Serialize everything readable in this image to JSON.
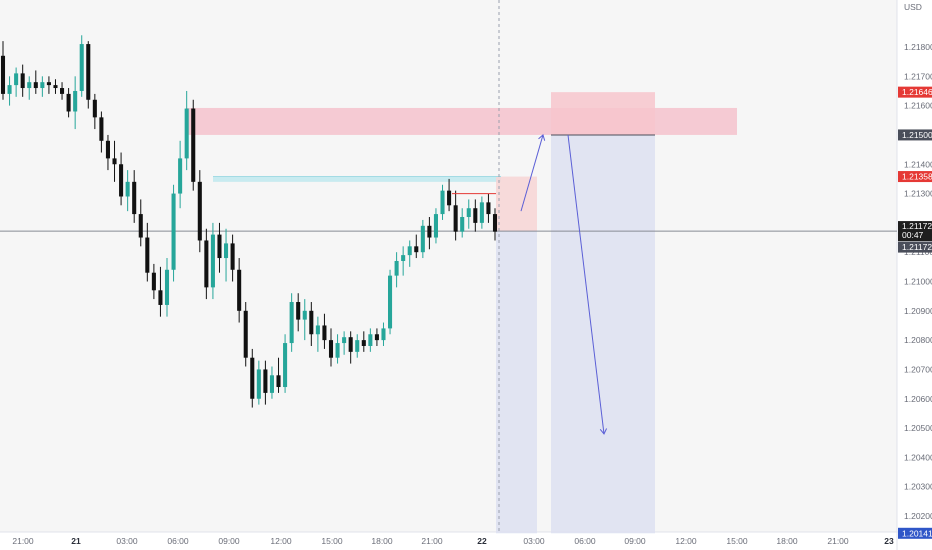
{
  "chart_data": {
    "type": "candlestick",
    "symbol_currency": "USD",
    "y_ticks": [
      "1.21800",
      "1.21700",
      "1.21600",
      "1.21500",
      "1.21400",
      "1.21300",
      "1.21100",
      "1.21000",
      "1.20900",
      "1.20800",
      "1.20700",
      "1.20600",
      "1.20500",
      "1.20400",
      "1.20300",
      "1.20200"
    ],
    "y_tick_values": [
      1.218,
      1.217,
      1.216,
      1.215,
      1.214,
      1.213,
      1.211,
      1.21,
      1.209,
      1.208,
      1.207,
      1.206,
      1.205,
      1.204,
      1.203,
      1.202
    ],
    "ylim": [
      1.2013,
      1.2193
    ],
    "x_ticks": [
      "21:00",
      "21",
      "03:00",
      "06:00",
      "09:00",
      "12:00",
      "15:00",
      "18:00",
      "21:00",
      "22",
      "03:00",
      "06:00",
      "09:00",
      "12:00",
      "15:00",
      "18:00",
      "21:00",
      "23"
    ],
    "x_tick_bold": [
      false,
      true,
      false,
      false,
      false,
      false,
      false,
      false,
      false,
      true,
      false,
      false,
      false,
      false,
      false,
      false,
      false,
      true
    ],
    "price_labels": [
      {
        "text": "1.21646",
        "value": 1.21646,
        "color": "#e53935",
        "text_color": "#ffffff"
      },
      {
        "text": "1.21500",
        "value": 1.215,
        "color": "#4a4e5a",
        "text_color": "#ffffff"
      },
      {
        "text": "1.21358",
        "value": 1.21358,
        "color": "#e53935",
        "text_color": "#ffffff"
      },
      {
        "text": "1.21172",
        "value": 1.21172,
        "color": "#1e1e1e",
        "text_color": "#ffffff",
        "sub": "00:47"
      },
      {
        "text": "1.21172",
        "value": 1.21172,
        "color": "#4a4e5a",
        "text_color": "#ffffff",
        "offset": 1
      },
      {
        "text": "1.20141",
        "value": 1.20141,
        "color": "#2f56c8",
        "text_color": "#ffffff"
      }
    ],
    "zones": [
      {
        "kind": "supply",
        "x_start": 186,
        "x_end": 737,
        "y_top": 1.21592,
        "y_bottom": 1.215,
        "color": "#f4c2cc"
      },
      {
        "kind": "imbalance",
        "x_start": 213,
        "x_end": 501,
        "y_top": 1.21358,
        "y_bottom": 1.2134,
        "color": "#bfe9ef"
      },
      {
        "kind": "long_profit",
        "x_start": 496,
        "x_end": 537,
        "y_top": 1.21358,
        "y_bottom": 1.21172,
        "color": "#f7d5d5"
      },
      {
        "kind": "long_loss",
        "x_start": 496,
        "x_end": 537,
        "y_top": 1.21172,
        "y_bottom": 1.20141,
        "color": "#dde0f1"
      },
      {
        "kind": "short_risk",
        "x_start": 551,
        "x_end": 655,
        "y_top": 1.21646,
        "y_bottom": 1.215,
        "color": "#f7c6cc"
      },
      {
        "kind": "short_target",
        "x_start": 551,
        "x_end": 655,
        "y_top": 1.215,
        "y_bottom": 1.20141,
        "color": "#dde0f1"
      }
    ],
    "current_price": 1.21172,
    "candles": [
      {
        "o": 1.2177,
        "h": 1.2182,
        "l": 1.2162,
        "c": 1.2164
      },
      {
        "o": 1.2164,
        "h": 1.217,
        "l": 1.216,
        "c": 1.2167
      },
      {
        "o": 1.2167,
        "h": 1.2173,
        "l": 1.2163,
        "c": 1.2171
      },
      {
        "o": 1.2171,
        "h": 1.2174,
        "l": 1.2163,
        "c": 1.2166
      },
      {
        "o": 1.2166,
        "h": 1.217,
        "l": 1.2162,
        "c": 1.2168
      },
      {
        "o": 1.2168,
        "h": 1.2172,
        "l": 1.2164,
        "c": 1.2166
      },
      {
        "o": 1.2166,
        "h": 1.217,
        "l": 1.2163,
        "c": 1.2168
      },
      {
        "o": 1.2168,
        "h": 1.217,
        "l": 1.2164,
        "c": 1.2167
      },
      {
        "o": 1.2167,
        "h": 1.2169,
        "l": 1.2164,
        "c": 1.2166
      },
      {
        "o": 1.2166,
        "h": 1.2168,
        "l": 1.2162,
        "c": 1.2164
      },
      {
        "o": 1.2164,
        "h": 1.2166,
        "l": 1.2156,
        "c": 1.2158
      },
      {
        "o": 1.2158,
        "h": 1.217,
        "l": 1.2152,
        "c": 1.2165
      },
      {
        "o": 1.2165,
        "h": 1.2184,
        "l": 1.2163,
        "c": 1.2181
      },
      {
        "o": 1.2181,
        "h": 1.2182,
        "l": 1.2159,
        "c": 1.2162
      },
      {
        "o": 1.2162,
        "h": 1.2164,
        "l": 1.2152,
        "c": 1.2156
      },
      {
        "o": 1.2156,
        "h": 1.2158,
        "l": 1.2144,
        "c": 1.2148
      },
      {
        "o": 1.2148,
        "h": 1.215,
        "l": 1.2138,
        "c": 1.2142
      },
      {
        "o": 1.2142,
        "h": 1.2148,
        "l": 1.2134,
        "c": 1.214
      },
      {
        "o": 1.214,
        "h": 1.2144,
        "l": 1.2126,
        "c": 1.2129
      },
      {
        "o": 1.2129,
        "h": 1.2138,
        "l": 1.2124,
        "c": 1.2134
      },
      {
        "o": 1.2134,
        "h": 1.2138,
        "l": 1.212,
        "c": 1.2123
      },
      {
        "o": 1.2123,
        "h": 1.2128,
        "l": 1.2112,
        "c": 1.2115
      },
      {
        "o": 1.2115,
        "h": 1.212,
        "l": 1.21,
        "c": 1.2103
      },
      {
        "o": 1.2103,
        "h": 1.2106,
        "l": 1.2094,
        "c": 1.2097
      },
      {
        "o": 1.2097,
        "h": 1.2105,
        "l": 1.2088,
        "c": 1.2092
      },
      {
        "o": 1.2092,
        "h": 1.2108,
        "l": 1.2088,
        "c": 1.2104
      },
      {
        "o": 1.2104,
        "h": 1.2133,
        "l": 1.21,
        "c": 1.213
      },
      {
        "o": 1.213,
        "h": 1.2148,
        "l": 1.2125,
        "c": 1.2142
      },
      {
        "o": 1.2142,
        "h": 1.2165,
        "l": 1.2138,
        "c": 1.2159
      },
      {
        "o": 1.2159,
        "h": 1.2162,
        "l": 1.2131,
        "c": 1.2134
      },
      {
        "o": 1.2134,
        "h": 1.2138,
        "l": 1.211,
        "c": 1.2114
      },
      {
        "o": 1.2114,
        "h": 1.2118,
        "l": 1.2094,
        "c": 1.2098
      },
      {
        "o": 1.2098,
        "h": 1.212,
        "l": 1.2094,
        "c": 1.2116
      },
      {
        "o": 1.2116,
        "h": 1.212,
        "l": 1.2103,
        "c": 1.2108
      },
      {
        "o": 1.2108,
        "h": 1.2118,
        "l": 1.21,
        "c": 1.2113
      },
      {
        "o": 1.2113,
        "h": 1.2116,
        "l": 1.21,
        "c": 1.2104
      },
      {
        "o": 1.2104,
        "h": 1.2108,
        "l": 1.2086,
        "c": 1.209
      },
      {
        "o": 1.209,
        "h": 1.2093,
        "l": 1.2071,
        "c": 1.2074
      },
      {
        "o": 1.2074,
        "h": 1.2077,
        "l": 1.2057,
        "c": 1.206
      },
      {
        "o": 1.206,
        "h": 1.2073,
        "l": 1.2058,
        "c": 1.207
      },
      {
        "o": 1.207,
        "h": 1.2073,
        "l": 1.2058,
        "c": 1.2062
      },
      {
        "o": 1.2062,
        "h": 1.2071,
        "l": 1.206,
        "c": 1.2068
      },
      {
        "o": 1.2068,
        "h": 1.2074,
        "l": 1.2062,
        "c": 1.2064
      },
      {
        "o": 1.2064,
        "h": 1.2082,
        "l": 1.2062,
        "c": 1.2079
      },
      {
        "o": 1.2079,
        "h": 1.2096,
        "l": 1.2076,
        "c": 1.2093
      },
      {
        "o": 1.2093,
        "h": 1.2096,
        "l": 1.2083,
        "c": 1.2087
      },
      {
        "o": 1.2087,
        "h": 1.2094,
        "l": 1.208,
        "c": 1.209
      },
      {
        "o": 1.209,
        "h": 1.2093,
        "l": 1.2078,
        "c": 1.2082
      },
      {
        "o": 1.2082,
        "h": 1.2088,
        "l": 1.2076,
        "c": 1.2085
      },
      {
        "o": 1.2085,
        "h": 1.2089,
        "l": 1.2077,
        "c": 1.208
      },
      {
        "o": 1.208,
        "h": 1.2084,
        "l": 1.2071,
        "c": 1.2074
      },
      {
        "o": 1.2074,
        "h": 1.2082,
        "l": 1.2072,
        "c": 1.2079
      },
      {
        "o": 1.2079,
        "h": 1.2083,
        "l": 1.2075,
        "c": 1.2081
      },
      {
        "o": 1.2081,
        "h": 1.2083,
        "l": 1.2072,
        "c": 1.2076
      },
      {
        "o": 1.2076,
        "h": 1.2082,
        "l": 1.2074,
        "c": 1.208
      },
      {
        "o": 1.208,
        "h": 1.2083,
        "l": 1.2076,
        "c": 1.2078
      },
      {
        "o": 1.2078,
        "h": 1.2084,
        "l": 1.2076,
        "c": 1.2082
      },
      {
        "o": 1.2082,
        "h": 1.2084,
        "l": 1.2078,
        "c": 1.208
      },
      {
        "o": 1.208,
        "h": 1.2086,
        "l": 1.2078,
        "c": 1.2084
      },
      {
        "o": 1.2084,
        "h": 1.2104,
        "l": 1.2082,
        "c": 1.2102
      },
      {
        "o": 1.2102,
        "h": 1.211,
        "l": 1.2098,
        "c": 1.2107
      },
      {
        "o": 1.2107,
        "h": 1.2112,
        "l": 1.2102,
        "c": 1.2109
      },
      {
        "o": 1.2109,
        "h": 1.2114,
        "l": 1.2105,
        "c": 1.2112
      },
      {
        "o": 1.2112,
        "h": 1.2116,
        "l": 1.2108,
        "c": 1.211
      },
      {
        "o": 1.211,
        "h": 1.2121,
        "l": 1.2108,
        "c": 1.2119
      },
      {
        "o": 1.2119,
        "h": 1.2122,
        "l": 1.2111,
        "c": 1.2115
      },
      {
        "o": 1.2115,
        "h": 1.2125,
        "l": 1.2113,
        "c": 1.2123
      },
      {
        "o": 1.2123,
        "h": 1.2133,
        "l": 1.2121,
        "c": 1.2131
      },
      {
        "o": 1.2131,
        "h": 1.2135,
        "l": 1.2124,
        "c": 1.2126
      },
      {
        "o": 1.2126,
        "h": 1.2131,
        "l": 1.2114,
        "c": 1.2117
      },
      {
        "o": 1.2117,
        "h": 1.2125,
        "l": 1.2115,
        "c": 1.2122
      },
      {
        "o": 1.2122,
        "h": 1.2128,
        "l": 1.2118,
        "c": 1.2125
      },
      {
        "o": 1.2125,
        "h": 1.2128,
        "l": 1.2117,
        "c": 1.212
      },
      {
        "o": 1.212,
        "h": 1.2129,
        "l": 1.2118,
        "c": 1.2127
      },
      {
        "o": 1.2127,
        "h": 1.213,
        "l": 1.212,
        "c": 1.2123
      },
      {
        "o": 1.2123,
        "h": 1.2125,
        "l": 1.2114,
        "c": 1.2117
      }
    ],
    "arrows": [
      {
        "x1_idx": 74.5,
        "y1": 1.2124,
        "x2": 543,
        "y2": 1.215,
        "color": "#5b5fd6"
      },
      {
        "x1": 568,
        "y1": 1.215,
        "x2": 604,
        "y2": 1.2048,
        "color": "#5b5fd6"
      }
    ]
  }
}
